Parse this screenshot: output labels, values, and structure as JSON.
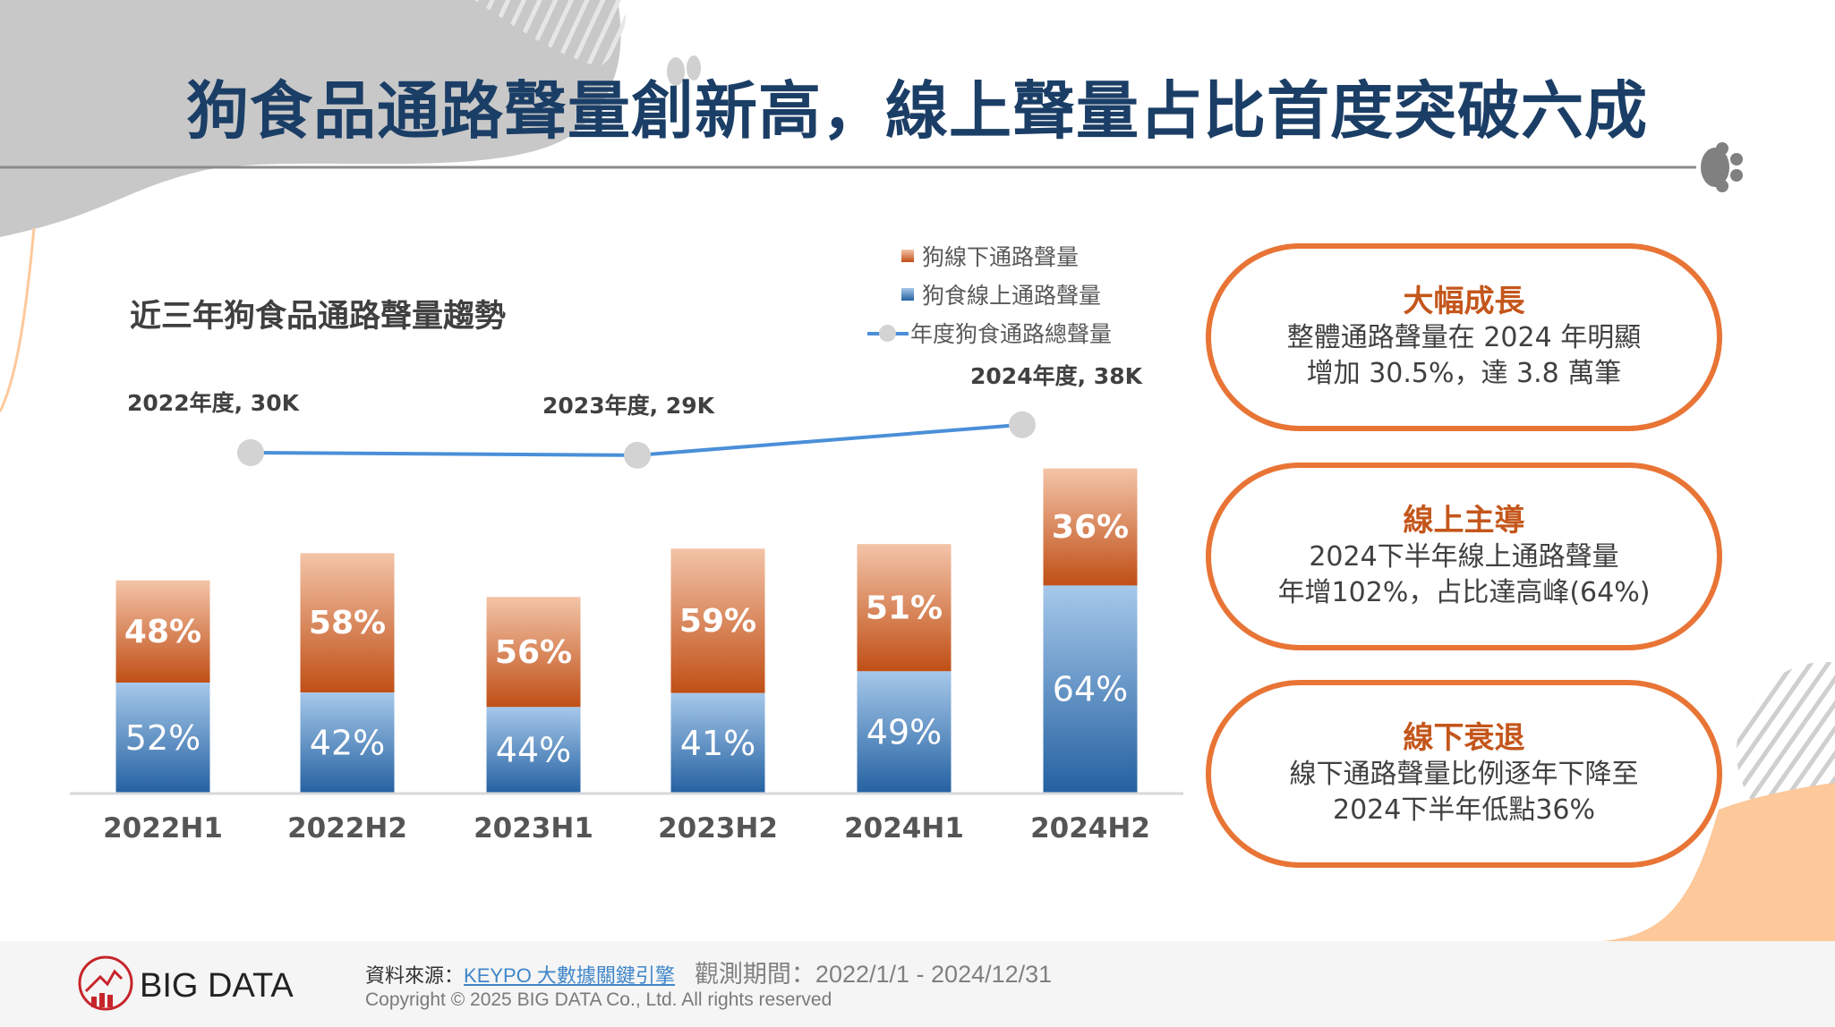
{
  "title": "狗食品通路聲量創新高，線上聲量占比首度突破六成",
  "chart_data": {
    "type": "bar",
    "stacked": true,
    "title": "近三年狗食品通路聲量趨勢",
    "categories": [
      "2022H1",
      "2022H2",
      "2023H1",
      "2023H2",
      "2024H1",
      "2024H2"
    ],
    "series": [
      {
        "name": "狗食線上通路聲量",
        "color": "#3b78b8",
        "share_labels": [
          "52%",
          "42%",
          "44%",
          "41%",
          "49%",
          "64%"
        ],
        "share": [
          52,
          42,
          44,
          41,
          49,
          64
        ]
      },
      {
        "name": "狗線下通路聲量",
        "color": "#d9692c",
        "share_labels": [
          "48%",
          "58%",
          "56%",
          "59%",
          "51%",
          "36%"
        ],
        "share": [
          48,
          58,
          56,
          59,
          51,
          36
        ]
      }
    ],
    "half_year_totals_k": [
      14.1,
      15.9,
      13.0,
      16.2,
      16.5,
      21.5
    ],
    "line_series": {
      "name": "年度狗食通路總聲量",
      "color": "#4a8fd8",
      "points": [
        {
          "label": "2022年度, 30K",
          "year": "2022",
          "value_k": 30,
          "between": [
            0,
            1
          ]
        },
        {
          "label": "2023年度, 29K",
          "year": "2023",
          "value_k": 29,
          "between": [
            2,
            3
          ]
        },
        {
          "label": "2024年度, 38K",
          "year": "2024",
          "value_k": 38,
          "between": [
            4,
            5
          ]
        }
      ]
    },
    "legend": [
      "狗線下通路聲量",
      "狗食線上通路聲量",
      "年度狗食通路總聲量"
    ],
    "legend_position": "top-right",
    "grid": false,
    "xlabel": "",
    "ylabel": ""
  },
  "cards": [
    {
      "title": "大幅成長",
      "lines": [
        "整體通路聲量在 2024 年明顯",
        "增加 30.5%，達 3.8 萬筆"
      ]
    },
    {
      "title": "線上主導",
      "lines": [
        "2024下半年線上通路聲量",
        "年增102%，占比達高峰(64%)"
      ]
    },
    {
      "title": "線下衰退",
      "lines": [
        "線下通路聲量比例逐年下降至",
        "2024下半年低點36%"
      ]
    }
  ],
  "footer": {
    "source_label": "資料來源：",
    "source_link": "KEYPO 大數據關鍵引擎",
    "period": "觀測期間：2022/1/1 - 2024/12/31",
    "copyright": "Copyright © 2025 BIG DATA Co., Ltd. All rights reserved",
    "logo_text": "BIG DATA"
  },
  "colors": {
    "title": "#1b3e66",
    "accent": "#e87435",
    "offline_top": "#f3c4a8",
    "offline_bottom": "#c04f16",
    "online_top": "#a6c8ea",
    "online_bottom": "#2461a1"
  }
}
